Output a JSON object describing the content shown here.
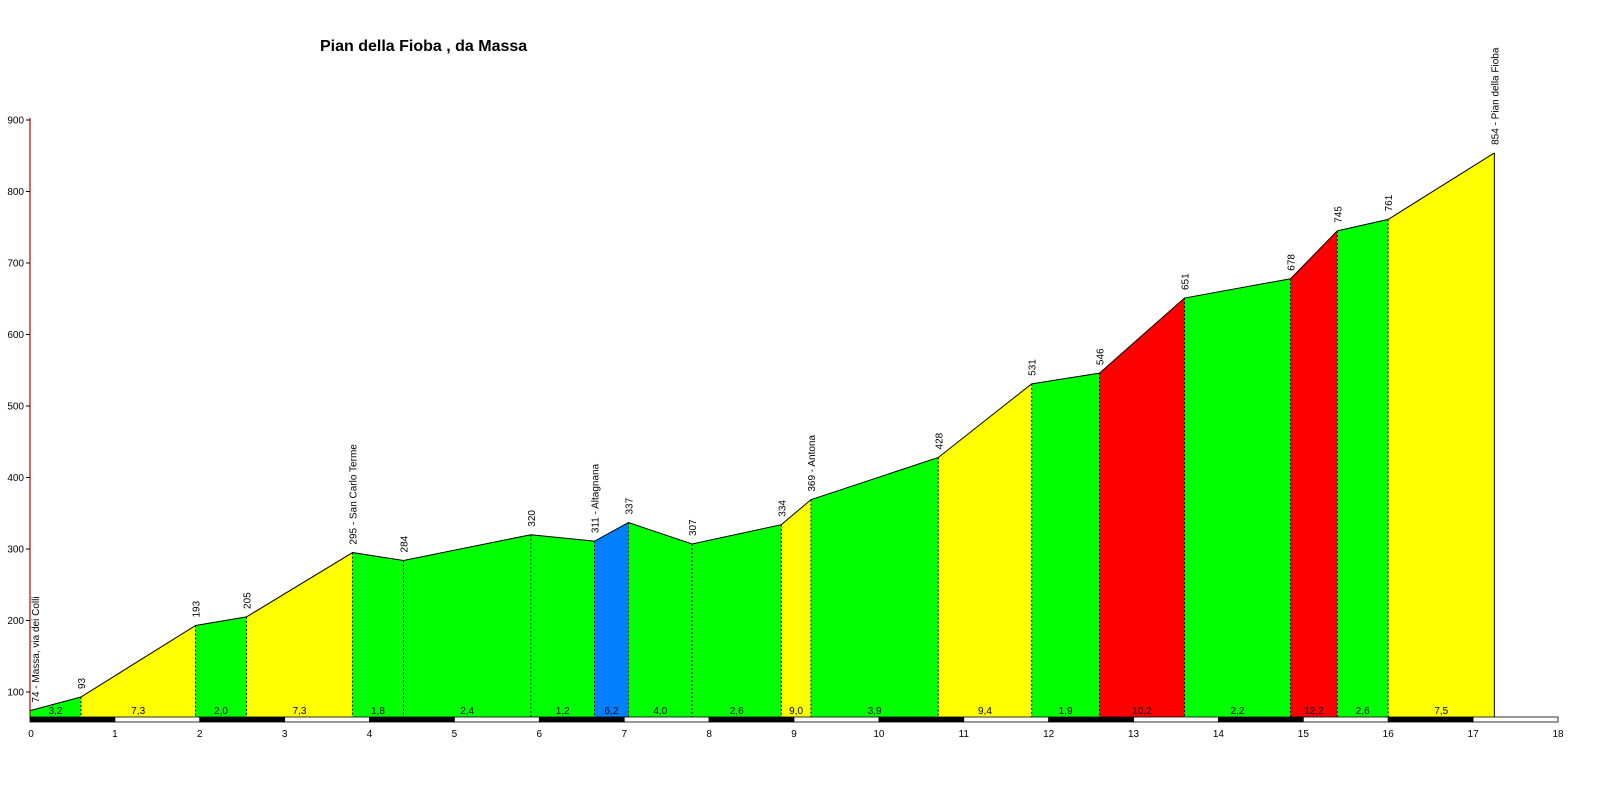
{
  "chart_data": {
    "type": "area",
    "title": "Pian della Fioba , da Massa",
    "xlabel": "",
    "ylabel": "",
    "xlim": [
      0,
      18
    ],
    "ylim": [
      70,
      900
    ],
    "y_ticks": [
      100,
      200,
      300,
      400,
      500,
      600,
      700,
      800,
      900
    ],
    "x_ticks": [
      0,
      1,
      2,
      3,
      4,
      5,
      6,
      7,
      8,
      9,
      10,
      11,
      12,
      13,
      14,
      15,
      16,
      17,
      18
    ],
    "grid": false,
    "colors": {
      "yellow": "#ffff00",
      "green": "#00ff00",
      "blue": "#0080ff",
      "red": "#ff0000"
    },
    "points": [
      {
        "x": 0.0,
        "y": 74,
        "label": "74 - Massa, via dei Colli"
      },
      {
        "x": 0.6,
        "y": 93,
        "label": "93"
      },
      {
        "x": 1.95,
        "y": 193,
        "label": "193"
      },
      {
        "x": 2.55,
        "y": 205,
        "label": "205"
      },
      {
        "x": 3.8,
        "y": 295,
        "label": "295 - San Carlo Terme"
      },
      {
        "x": 4.4,
        "y": 284,
        "label": "284"
      },
      {
        "x": 5.9,
        "y": 320,
        "label": "320"
      },
      {
        "x": 6.65,
        "y": 311,
        "label": "311 - Altagnana"
      },
      {
        "x": 7.05,
        "y": 337,
        "label": "337"
      },
      {
        "x": 7.8,
        "y": 307,
        "label": "307"
      },
      {
        "x": 8.85,
        "y": 334,
        "label": "334"
      },
      {
        "x": 9.2,
        "y": 369,
        "label": "369 - Antona"
      },
      {
        "x": 10.7,
        "y": 428,
        "label": "428"
      },
      {
        "x": 11.8,
        "y": 531,
        "label": "531"
      },
      {
        "x": 12.6,
        "y": 546,
        "label": "546"
      },
      {
        "x": 13.6,
        "y": 651,
        "label": "651"
      },
      {
        "x": 14.85,
        "y": 678,
        "label": "678"
      },
      {
        "x": 15.4,
        "y": 745,
        "label": "745"
      },
      {
        "x": 16.0,
        "y": 761,
        "label": "761"
      },
      {
        "x": 17.25,
        "y": 854,
        "label": "854 - Pian della Fioba"
      }
    ],
    "segments": [
      {
        "gradient": "3,2",
        "color": "green"
      },
      {
        "gradient": "7,3",
        "color": "yellow"
      },
      {
        "gradient": "2,0",
        "color": "green"
      },
      {
        "gradient": "7,3",
        "color": "yellow"
      },
      {
        "gradient": "1,8",
        "color": "green"
      },
      {
        "gradient": "2,4",
        "color": "green"
      },
      {
        "gradient": "1,2",
        "color": "green"
      },
      {
        "gradient": "6,2",
        "color": "blue"
      },
      {
        "gradient": "4,0",
        "color": "green"
      },
      {
        "gradient": "2,6",
        "color": "green"
      },
      {
        "gradient": "9,0",
        "color": "yellow"
      },
      {
        "gradient": "3,9",
        "color": "green"
      },
      {
        "gradient": "9,4",
        "color": "yellow"
      },
      {
        "gradient": "1,9",
        "color": "green"
      },
      {
        "gradient": "10,2",
        "color": "red"
      },
      {
        "gradient": "2,2",
        "color": "green"
      },
      {
        "gradient": "12,2",
        "color": "red"
      },
      {
        "gradient": "2,6",
        "color": "green"
      },
      {
        "gradient": "7,5",
        "color": "yellow"
      }
    ]
  }
}
